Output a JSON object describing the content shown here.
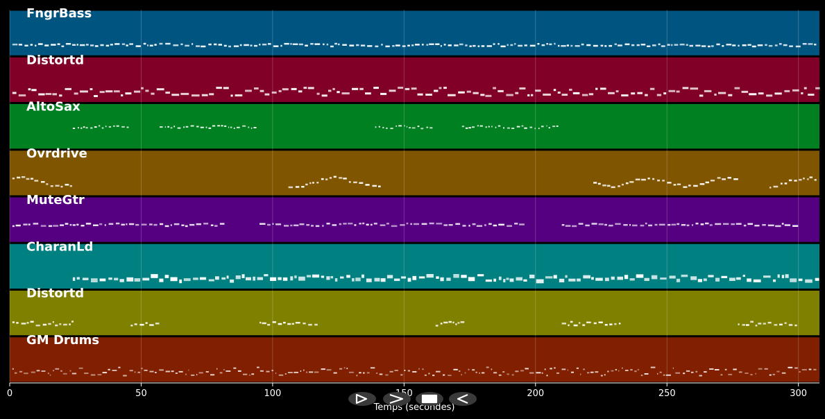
{
  "timeline": {
    "x_axis_label": "Temps (secondes)",
    "x_range": [
      0,
      308
    ],
    "x_ticks": [
      0,
      50,
      100,
      150,
      200,
      250,
      300
    ],
    "grid": true
  },
  "tracks": [
    {
      "name": "FngrBass",
      "color": "#005580",
      "pattern": "bass",
      "segments": [
        [
          1,
          307
        ]
      ]
    },
    {
      "name": "Distortd",
      "color": "#800028",
      "pattern": "dense",
      "segments": [
        [
          1,
          307
        ]
      ]
    },
    {
      "name": "AltoSax",
      "color": "#008020",
      "pattern": "sparse",
      "segments": [
        [
          24,
          45
        ],
        [
          57,
          93
        ],
        [
          139,
          161
        ],
        [
          172,
          208
        ]
      ]
    },
    {
      "name": "Ovrdrive",
      "color": "#805500",
      "pattern": "melody",
      "segments": [
        [
          1,
          24
        ],
        [
          106,
          141
        ],
        [
          222,
          277
        ],
        [
          289,
          307
        ]
      ]
    },
    {
      "name": "MuteGtr",
      "color": "#550080",
      "pattern": "comp",
      "segments": [
        [
          1,
          80
        ],
        [
          95,
          195
        ],
        [
          210,
          300
        ]
      ]
    },
    {
      "name": "CharanLd",
      "color": "#008080",
      "pattern": "lead",
      "segments": [
        [
          24,
          307
        ]
      ]
    },
    {
      "name": "Distortd",
      "color": "#808000",
      "pattern": "riff",
      "segments": [
        [
          1,
          24
        ],
        [
          46,
          57
        ],
        [
          95,
          117
        ],
        [
          162,
          173
        ],
        [
          210,
          232
        ],
        [
          277,
          300
        ]
      ]
    },
    {
      "name": "GM Drums",
      "color": "#802000",
      "pattern": "drums",
      "segments": [
        [
          1,
          307
        ]
      ]
    }
  ],
  "controls": [
    {
      "name": "step-forward-button",
      "glyph": "step-forward-icon"
    },
    {
      "name": "play-button",
      "glyph": "play-icon"
    },
    {
      "name": "stop-button",
      "glyph": "stop-icon"
    },
    {
      "name": "rewind-button",
      "glyph": "rewind-icon"
    }
  ]
}
